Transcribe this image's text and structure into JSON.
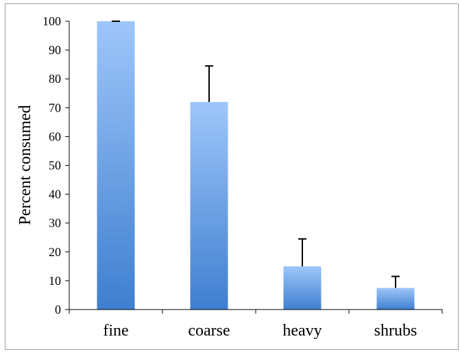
{
  "chart_data": {
    "type": "bar",
    "categories": [
      "fine",
      "coarse",
      "heavy",
      "shrubs"
    ],
    "values": [
      100,
      72,
      15,
      7.5
    ],
    "error_plus": [
      0,
      12.5,
      9.5,
      4
    ],
    "title": "",
    "xlabel": "",
    "ylabel": "Percent consumed",
    "ylim": [
      0,
      100
    ],
    "yticks": [
      0,
      10,
      20,
      30,
      40,
      50,
      60,
      70,
      80,
      90,
      100
    ],
    "grid": false,
    "legend": "none",
    "colors": {
      "bar_top": "#9ec6fa",
      "bar_bottom": "#3f7fd0",
      "axis": "#000000",
      "error_bar": "#000000"
    }
  }
}
